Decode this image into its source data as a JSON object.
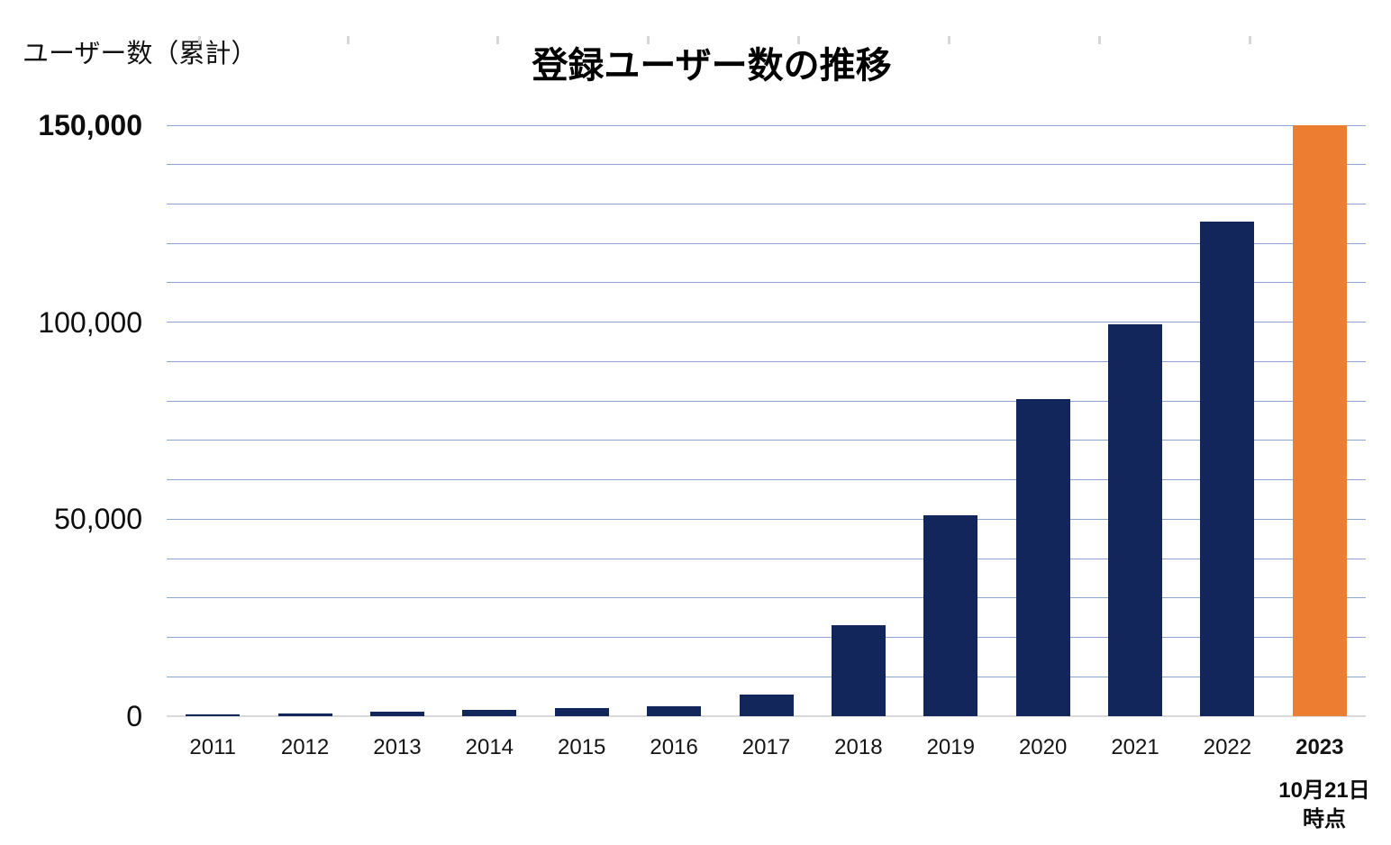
{
  "chart": {
    "title": "登録ユーザー数の推移",
    "y_axis_caption": "ユーザー数（累計）",
    "annotation": {
      "line1": "10月21日",
      "line2": "時点"
    }
  },
  "chart_data": {
    "type": "bar",
    "title": "登録ユーザー数の推移",
    "xlabel": "",
    "ylabel": "ユーザー数（累計）",
    "categories": [
      "2011",
      "2012",
      "2013",
      "2014",
      "2015",
      "2016",
      "2017",
      "2018",
      "2019",
      "2020",
      "2021",
      "2022",
      "2023"
    ],
    "values": [
      500,
      800,
      1100,
      1500,
      2000,
      2500,
      5600,
      23000,
      51000,
      80500,
      99500,
      125500,
      150000
    ],
    "ylim": [
      0,
      150000
    ],
    "gridline_step": 10000,
    "grid": true,
    "legend": "none",
    "highlight_index": 12,
    "highlight_note": "2023年は10月21日時点",
    "y_ticks": [
      {
        "label": "0",
        "value": 0,
        "bold": false
      },
      {
        "label": "50,000",
        "value": 50000,
        "bold": false
      },
      {
        "label": "100,000",
        "value": 100000,
        "bold": false
      },
      {
        "label": "150,000",
        "value": 150000,
        "bold": true
      }
    ]
  },
  "colors": {
    "bar": "#13265C",
    "bar_highlight": "#ED7D31",
    "gridline": "#8CA6CE",
    "baseline": "#D9D9D9",
    "ruler_tick": "#D6D6D6",
    "background": "#FFFFFF"
  }
}
